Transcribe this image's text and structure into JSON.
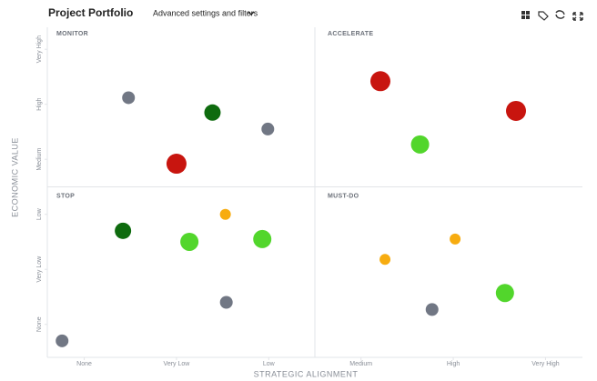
{
  "header": {
    "title": "Project Portfolio",
    "filters": "Advanced settings and filters"
  },
  "chart_data": {
    "type": "bubble",
    "x_label": "STRATEGIC ALIGNMENT",
    "y_label": "ECONOMIC VALUE",
    "annotations": [
      "MONITOR",
      "ACCELERATE",
      "STOP",
      "MUST-DO"
    ],
    "x": [
      0.48,
      1.39,
      1.99,
      1.0,
      3.21,
      4.68,
      3.64,
      1.53,
      0.42,
      1.14,
      1.93,
      1.54,
      -0.24,
      4.02,
      3.26,
      4.56,
      3.77
    ],
    "values": [
      4.12,
      3.85,
      3.55,
      2.92,
      4.42,
      3.88,
      3.27,
      2.0,
      1.7,
      1.5,
      1.55,
      0.4,
      -0.3,
      1.55,
      1.18,
      0.57,
      0.27
    ],
    "sizes": [
      7,
      9,
      7,
      11,
      11,
      11,
      10,
      6,
      9,
      10,
      10,
      7,
      7,
      6,
      6,
      10,
      7
    ],
    "colors": [
      "#717784",
      "#0e6b0e",
      "#717784",
      "#c8150f",
      "#c8150f",
      "#c8150f",
      "#52d62c",
      "#f7ac10",
      "#0e6b0e",
      "#52d62c",
      "#52d62c",
      "#717784",
      "#717784",
      "#f7ac10",
      "#f7ac10",
      "#52d62c",
      "#717784"
    ],
    "xlim": [
      -0.4,
      5.4
    ],
    "ylim": [
      -0.6,
      5.4
    ],
    "xticks": [
      {
        "value": 0,
        "label": "None"
      },
      {
        "value": 1,
        "label": "Very Low"
      },
      {
        "value": 2,
        "label": "Low"
      },
      {
        "value": 3,
        "label": "Medium"
      },
      {
        "value": 4,
        "label": "High"
      },
      {
        "value": 5,
        "label": "Very High"
      }
    ],
    "yticks": [
      {
        "value": 0,
        "label": "None"
      },
      {
        "value": 1,
        "label": "Very Low"
      },
      {
        "value": 2,
        "label": "Low"
      },
      {
        "value": 3,
        "label": "Medium"
      },
      {
        "value": 4,
        "label": "High"
      },
      {
        "value": 5,
        "label": "Very High"
      }
    ],
    "dividers": {
      "x": 2.5,
      "y": 2.5
    }
  }
}
